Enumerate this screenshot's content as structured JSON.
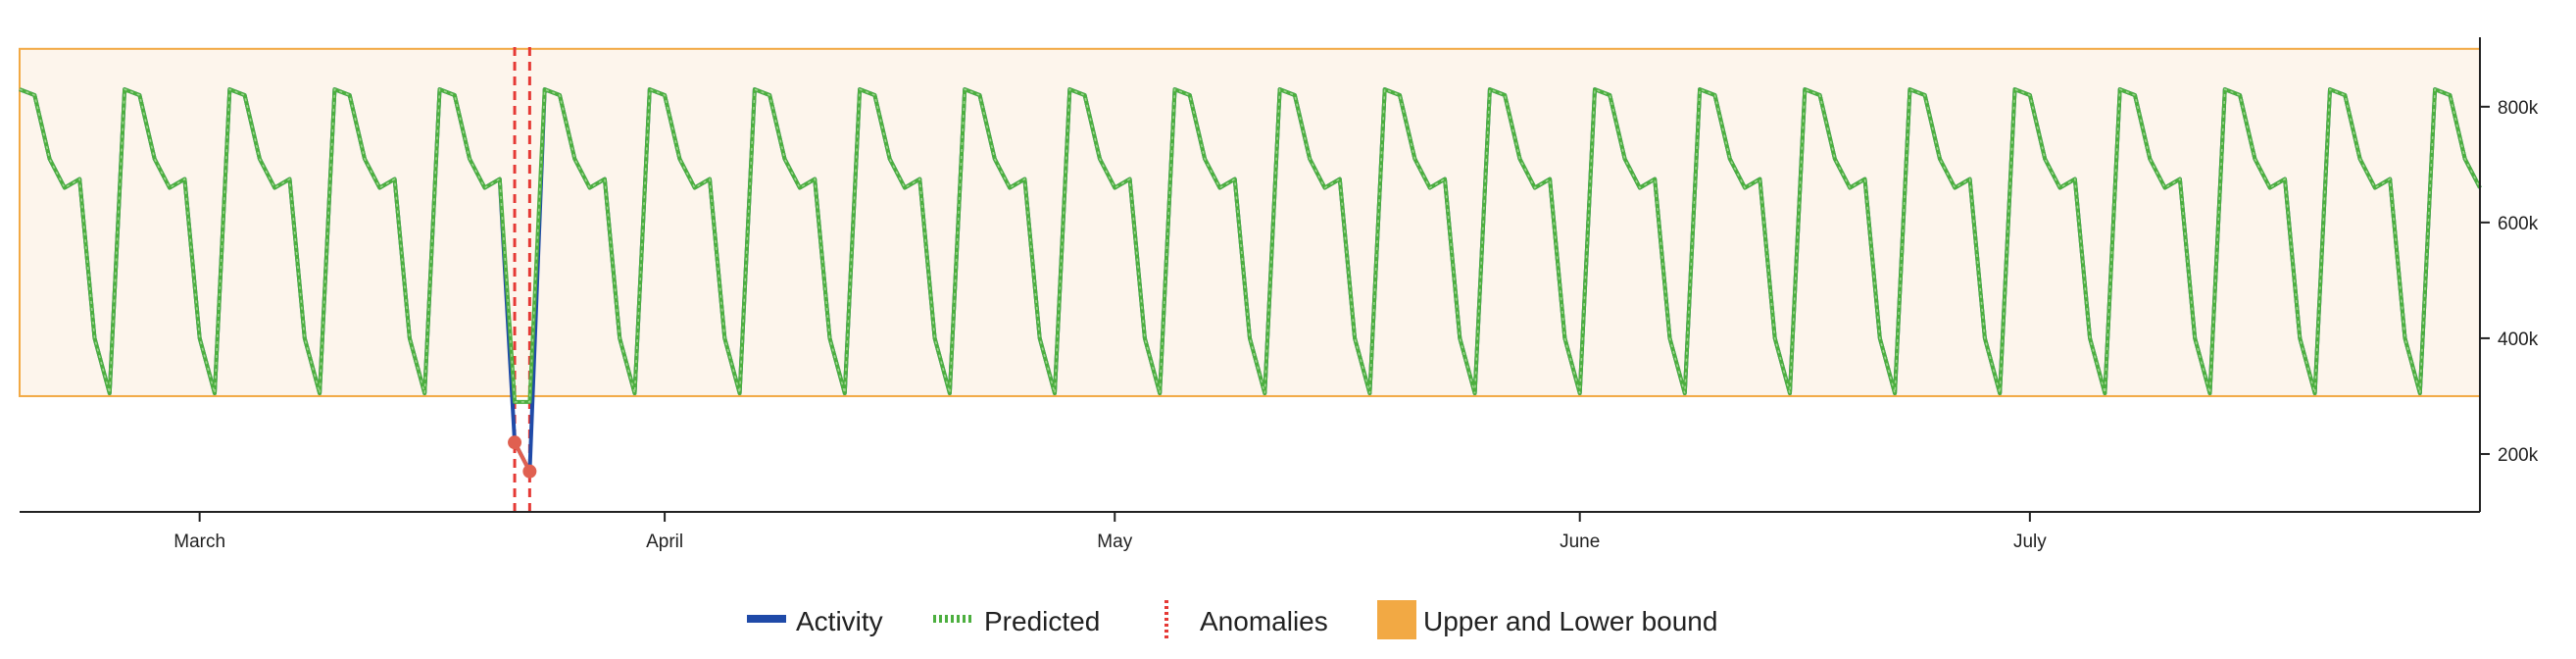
{
  "chart_data": {
    "type": "line",
    "title": "",
    "xlabel": "",
    "ylabel": "",
    "x_ticks": [
      {
        "label": "March",
        "date": "2024-03-01"
      },
      {
        "label": "April",
        "date": "2024-04-01"
      },
      {
        "label": "May",
        "date": "2024-05-01"
      },
      {
        "label": "June",
        "date": "2024-06-01"
      },
      {
        "label": "July",
        "date": "2024-07-01"
      }
    ],
    "y_ticks": [
      {
        "label": "200k",
        "value": 200000
      },
      {
        "label": "400k",
        "value": 400000
      },
      {
        "label": "600k",
        "value": 600000
      },
      {
        "label": "800k",
        "value": 800000
      }
    ],
    "xlim": [
      "2024-02-18",
      "2024-07-31"
    ],
    "ylim": [
      100000,
      920000
    ],
    "y_axis_side": "right",
    "grid": false,
    "legend_position": "bottom-center",
    "bounds": {
      "upper": 900000,
      "lower": 300000
    },
    "x_start": "2024-02-18",
    "weekly_pattern": [
      830000,
      820000,
      710000,
      660000,
      675000,
      400000,
      305000
    ],
    "anomaly_overrides": [
      {
        "date": "2024-03-22",
        "activity": 220000,
        "predicted": 290000
      },
      {
        "date": "2024-03-23",
        "activity": 170000,
        "predicted": 290000
      }
    ],
    "anomalies": [
      {
        "date": "2024-03-22",
        "value": 220000
      },
      {
        "date": "2024-03-23",
        "value": 170000
      }
    ],
    "series": [
      {
        "name": "Activity",
        "color": "#1f4aa8",
        "style": "solid"
      },
      {
        "name": "Predicted",
        "color": "#4caf3f",
        "style": "dotted"
      }
    ],
    "legend": [
      {
        "label": "Activity",
        "color": "#1f4aa8",
        "kind": "solid-line"
      },
      {
        "label": "Predicted",
        "color": "#4caf3f",
        "kind": "dotted-line"
      },
      {
        "label": "Anomalies",
        "color": "#e53935",
        "kind": "dashed-vertical"
      },
      {
        "label": "Upper and Lower bound",
        "color": "#f2a944",
        "kind": "filled-box"
      }
    ],
    "colors": {
      "band_fill": "#fdf5ec",
      "band_stroke": "#f2a944",
      "anomaly": "#e53935",
      "anomaly_point": "#e06050",
      "axis": "#222222"
    }
  }
}
